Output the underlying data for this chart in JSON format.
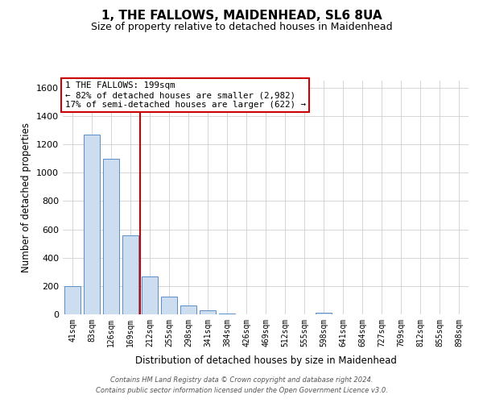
{
  "title": "1, THE FALLOWS, MAIDENHEAD, SL6 8UA",
  "subtitle": "Size of property relative to detached houses in Maidenhead",
  "xlabel": "Distribution of detached houses by size in Maidenhead",
  "ylabel": "Number of detached properties",
  "footer_line1": "Contains HM Land Registry data © Crown copyright and database right 2024.",
  "footer_line2": "Contains public sector information licensed under the Open Government Licence v3.0.",
  "bin_labels": [
    "41sqm",
    "83sqm",
    "126sqm",
    "169sqm",
    "212sqm",
    "255sqm",
    "298sqm",
    "341sqm",
    "384sqm",
    "426sqm",
    "469sqm",
    "512sqm",
    "555sqm",
    "598sqm",
    "641sqm",
    "684sqm",
    "727sqm",
    "769sqm",
    "812sqm",
    "855sqm",
    "898sqm"
  ],
  "bar_values": [
    200,
    1270,
    1100,
    560,
    270,
    125,
    60,
    30,
    5,
    0,
    0,
    0,
    0,
    12,
    0,
    0,
    0,
    0,
    0,
    0,
    0
  ],
  "bar_color": "#ccddf0",
  "bar_edge_color": "#5b8cc8",
  "property_line_color": "#cc0000",
  "annotation_title": "1 THE FALLOWS: 199sqm",
  "annotation_line1": "← 82% of detached houses are smaller (2,982)",
  "annotation_line2": "17% of semi-detached houses are larger (622) →",
  "annotation_box_color": "#cc0000",
  "ylim": [
    0,
    1650
  ],
  "yticks": [
    0,
    200,
    400,
    600,
    800,
    1000,
    1200,
    1400,
    1600
  ],
  "grid_color": "#d0d0d0",
  "title_fontsize": 11,
  "subtitle_fontsize": 9
}
